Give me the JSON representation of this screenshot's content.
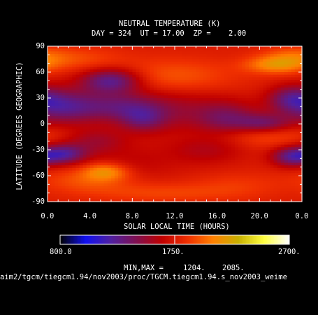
{
  "chart_data": {
    "type": "heatmap",
    "title": "NEUTRAL TEMPERATURE (K)",
    "subtitle": "DAY = 324  UT = 17.00  ZP =    2.00",
    "xlabel": "SOLAR LOCAL TIME (HOURS)",
    "ylabel": "LATITUDE (DEGREES GEOGRAPHIC)",
    "xlim": [
      0,
      24
    ],
    "ylim": [
      -90,
      90
    ],
    "x_ticks": [
      "0.0",
      "4.0",
      "8.0",
      "12.0",
      "16.0",
      "20.0",
      "0.0"
    ],
    "y_ticks": [
      "-90",
      "-60",
      "-30",
      "0",
      "30",
      "60",
      "90"
    ],
    "colorbar": {
      "min_label": "800.0",
      "mid_label": "1750.",
      "max_label": "2700.",
      "range": [
        800,
        2700
      ],
      "colors": [
        "#000000",
        "#1010f0",
        "#5020a0",
        "#801050",
        "#c00000",
        "#f03000",
        "#ff8000",
        "#c8b000",
        "#ffff40",
        "#ffffff"
      ]
    },
    "min_max_label": "MIN,MAX =",
    "min_value": "1204.",
    "max_value": "2085.",
    "blobs": [
      {
        "x": 6.0,
        "y": 50,
        "value": 1250,
        "sx": 2.0,
        "sy": 10
      },
      {
        "x": 1.5,
        "y": 20,
        "value": 1300,
        "sx": 2.5,
        "sy": 14
      },
      {
        "x": 7.0,
        "y": 20,
        "value": 1450,
        "sx": 2.5,
        "sy": 12
      },
      {
        "x": 12.0,
        "y": 15,
        "value": 1550,
        "sx": 3.5,
        "sy": 18
      },
      {
        "x": 17.0,
        "y": 5,
        "value": 1450,
        "sx": 2.0,
        "sy": 14
      },
      {
        "x": 20.5,
        "y": 0,
        "value": 1400,
        "sx": 1.8,
        "sy": 8
      },
      {
        "x": 9.0,
        "y": 5,
        "value": 1500,
        "sx": 1.5,
        "sy": 10
      },
      {
        "x": 23.0,
        "y": 30,
        "value": 1450,
        "sx": 1.5,
        "sy": 10
      },
      {
        "x": 1.5,
        "y": -35,
        "value": 1280,
        "sx": 1.5,
        "sy": 8
      },
      {
        "x": 23.0,
        "y": -38,
        "value": 1320,
        "sx": 1.3,
        "sy": 8
      },
      {
        "x": 4.5,
        "y": -20,
        "value": 1550,
        "sx": 2.0,
        "sy": 10
      },
      {
        "x": 15.0,
        "y": -30,
        "value": 1600,
        "sx": 2.5,
        "sy": 12
      },
      {
        "x": 8.0,
        "y": -45,
        "value": 1650,
        "sx": 3.0,
        "sy": 15
      },
      {
        "x": 5.5,
        "y": -55,
        "value": 2085,
        "sx": 1.5,
        "sy": 7
      },
      {
        "x": 4.0,
        "y": -65,
        "value": 1950,
        "sx": 3.0,
        "sy": 10
      },
      {
        "x": 21.5,
        "y": 68,
        "value": 2080,
        "sx": 2.0,
        "sy": 7
      },
      {
        "x": 23.0,
        "y": 78,
        "value": 1950,
        "sx": 2.0,
        "sy": 8
      },
      {
        "x": 12.0,
        "y": 55,
        "value": 1950,
        "sx": 4.0,
        "sy": 14
      },
      {
        "x": 3.0,
        "y": 75,
        "value": 1900,
        "sx": 3.0,
        "sy": 10
      },
      {
        "x": 20.0,
        "y": -12,
        "value": 1950,
        "sx": 3.5,
        "sy": 10
      },
      {
        "x": 11.0,
        "y": -80,
        "value": 1900,
        "sx": 5.0,
        "sy": 8
      },
      {
        "x": 18.0,
        "y": -70,
        "value": 1850,
        "sx": 3.0,
        "sy": 10
      }
    ]
  },
  "footer": {
    "path": "aim2/tgcm/tiegcm1.94/nov2003/proc/TGCM.tiegcm1.94.s_nov2003_weime"
  }
}
